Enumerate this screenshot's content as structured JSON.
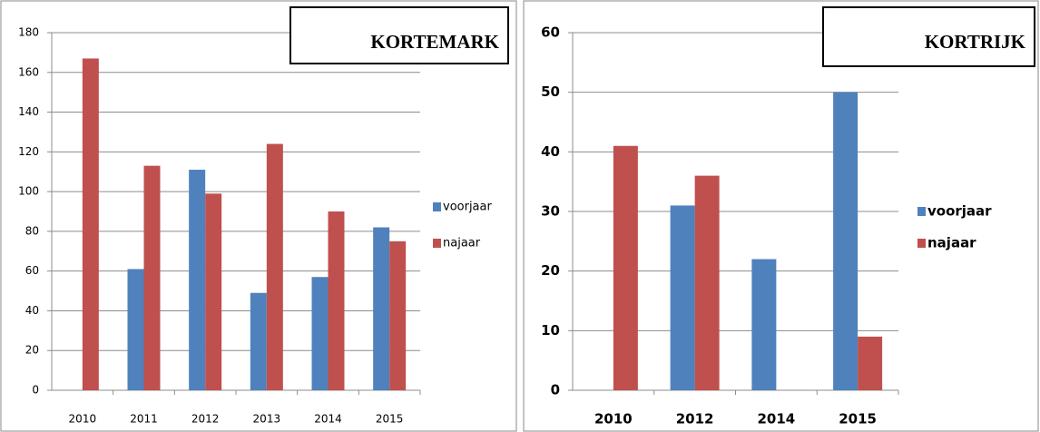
{
  "chart_data": [
    {
      "type": "bar",
      "title": "KORTEMARK",
      "categories": [
        "2010",
        "2011",
        "2012",
        "2013",
        "2014",
        "2015"
      ],
      "series": [
        {
          "name": "voorjaar",
          "color": "#4f81bd",
          "values": [
            null,
            61,
            111,
            49,
            57,
            82
          ]
        },
        {
          "name": "najaar",
          "color": "#c0504d",
          "values": [
            167,
            113,
            99,
            124,
            90,
            75
          ]
        }
      ],
      "ylim": [
        0,
        180
      ],
      "yticks": [
        0,
        20,
        40,
        60,
        80,
        100,
        120,
        140,
        160,
        180
      ],
      "grid": true,
      "legend": "right"
    },
    {
      "type": "bar",
      "title": "KORTRIJK",
      "categories": [
        "2010",
        "2012",
        "2014",
        "2015"
      ],
      "series": [
        {
          "name": "voorjaar",
          "color": "#4f81bd",
          "values": [
            null,
            31,
            22,
            50
          ]
        },
        {
          "name": "najaar",
          "color": "#c0504d",
          "values": [
            41,
            36,
            null,
            9
          ]
        }
      ],
      "ylim": [
        0,
        60
      ],
      "yticks": [
        0,
        10,
        20,
        30,
        40,
        50,
        60
      ],
      "grid": true,
      "legend": "right"
    }
  ]
}
